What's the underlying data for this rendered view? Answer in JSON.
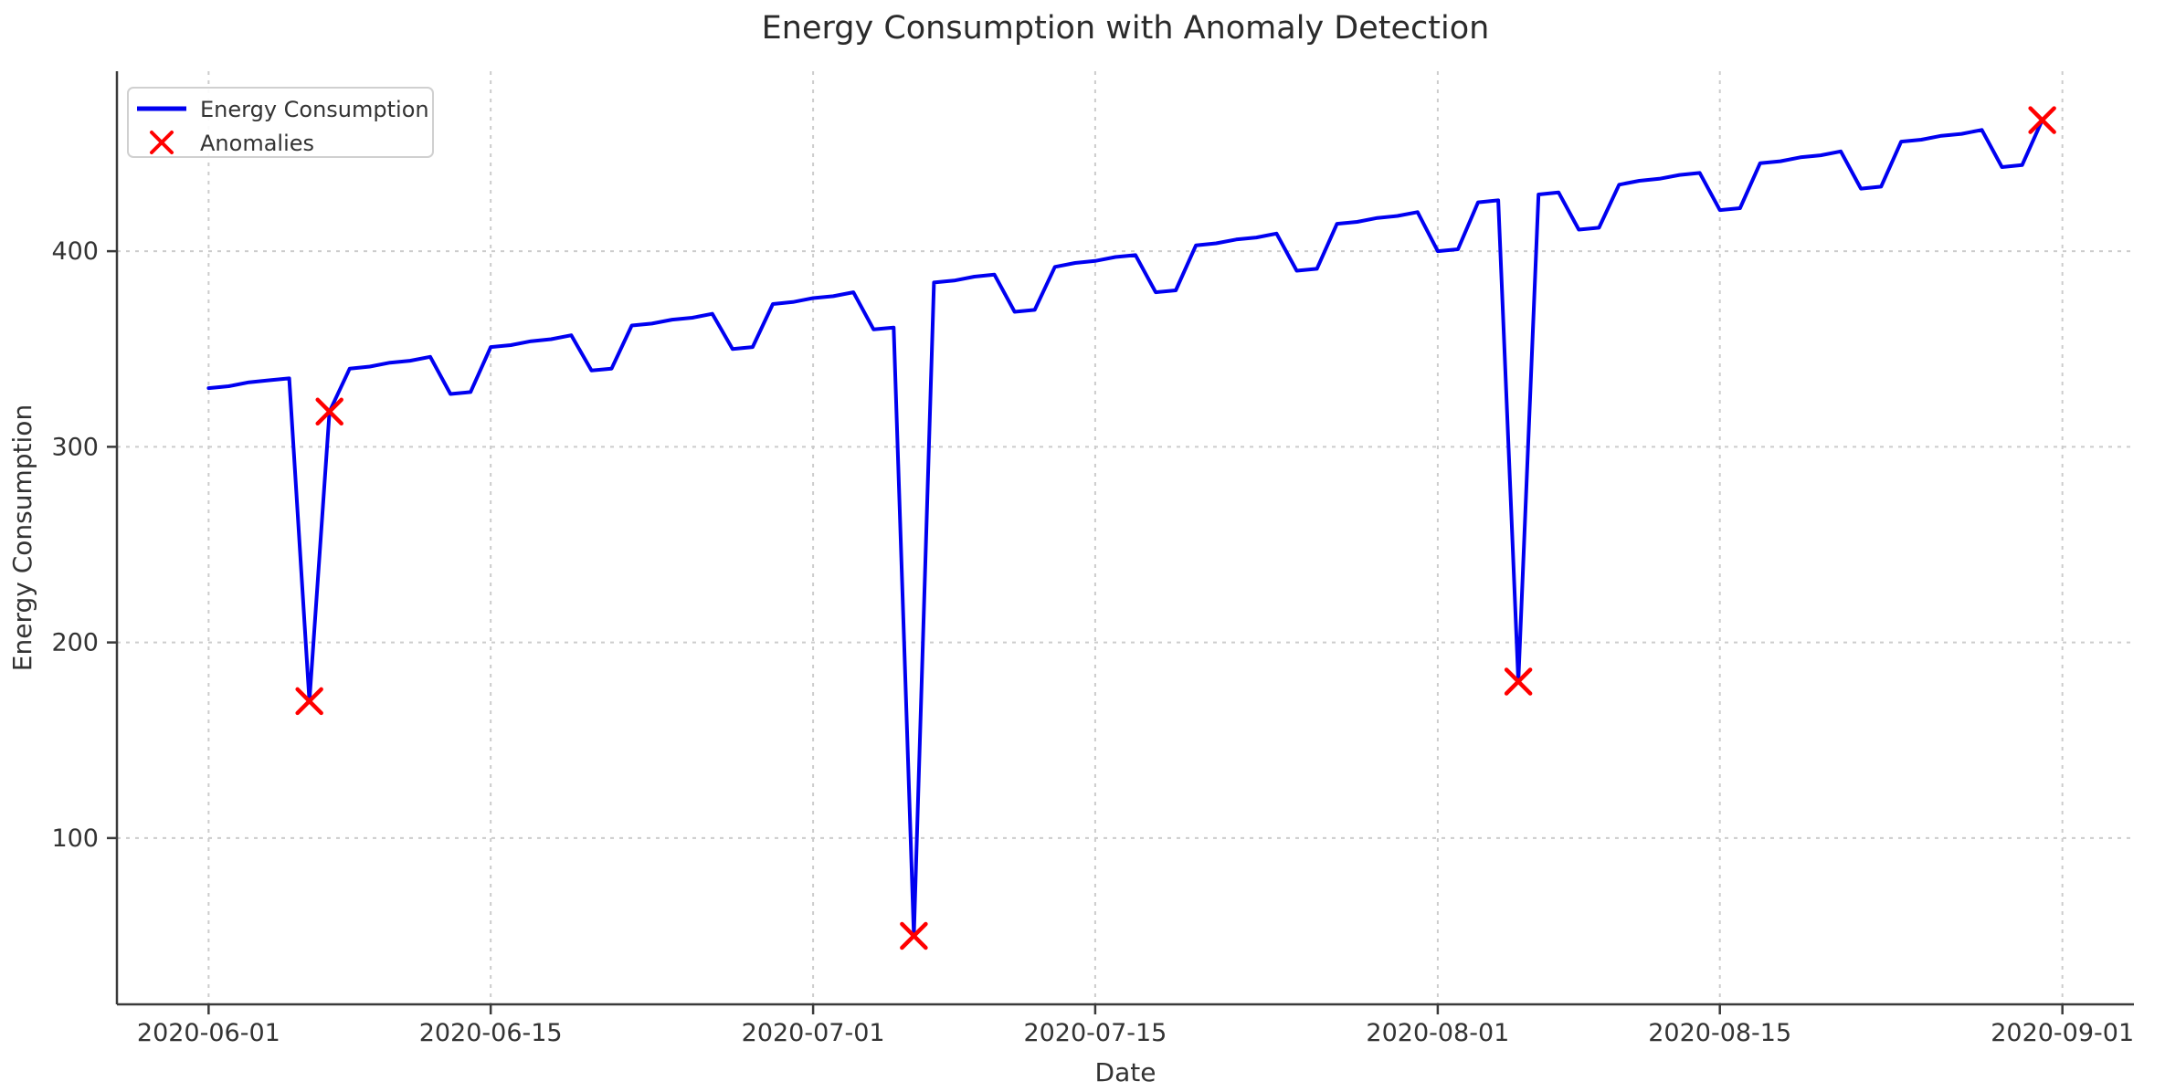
{
  "chart_data": {
    "type": "line",
    "title": "Energy Consumption with Anomaly Detection",
    "xlabel": "Date",
    "ylabel": "Energy Consumption",
    "grid": true,
    "legend_position": "upper left",
    "legend": [
      {
        "label": "Energy Consumption",
        "marker": "line"
      },
      {
        "label": "Anomalies",
        "marker": "x"
      }
    ],
    "colors": {
      "line": "#0000f0",
      "anomaly": "#ff0000",
      "grid": "#cccccc",
      "spine": "#3a3a3a",
      "text": "#333333",
      "legend_border": "#d0d0d0",
      "background": "#ffffff"
    },
    "x_tick_labels": [
      "2020-06-01",
      "2020-06-15",
      "2020-07-01",
      "2020-07-15",
      "2020-08-01",
      "2020-08-15",
      "2020-09-01"
    ],
    "y_tick_labels": [
      100,
      200,
      300,
      400
    ],
    "ylim": [
      15,
      492
    ],
    "xlim_margin_days": 4.55,
    "series": [
      {
        "name": "Energy Consumption",
        "start_date": "2020-06-01",
        "end_date": "2020-08-31",
        "values": [
          330,
          331,
          333,
          334,
          335,
          170,
          318,
          340,
          341,
          343,
          344,
          346,
          327,
          328,
          351,
          352,
          354,
          355,
          357,
          339,
          340,
          362,
          363,
          365,
          366,
          368,
          350,
          351,
          373,
          374,
          376,
          377,
          379,
          360,
          361,
          50,
          384,
          385,
          387,
          388,
          369,
          370,
          392,
          394,
          395,
          397,
          398,
          379,
          380,
          403,
          404,
          406,
          407,
          409,
          390,
          391,
          414,
          415,
          417,
          418,
          420,
          400,
          401,
          425,
          426,
          180,
          429,
          430,
          411,
          412,
          434,
          436,
          437,
          439,
          440,
          421,
          422,
          445,
          446,
          448,
          449,
          451,
          432,
          433,
          456,
          457,
          459,
          460,
          462,
          443,
          444,
          467
        ]
      }
    ],
    "anomalies": {
      "name": "Anomalies",
      "points": [
        {
          "date": "2020-06-06",
          "value": 170
        },
        {
          "date": "2020-06-07",
          "value": 318
        },
        {
          "date": "2020-07-06",
          "value": 50
        },
        {
          "date": "2020-08-05",
          "value": 180
        },
        {
          "date": "2020-08-31",
          "value": 467
        }
      ]
    }
  }
}
